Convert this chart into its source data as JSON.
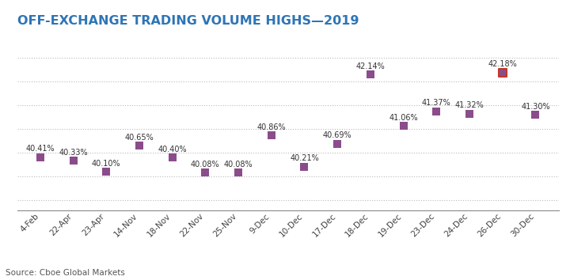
{
  "title": "OFF-EXCHANGE TRADING VOLUME HIGHS—2019",
  "categories": [
    "4-Feb",
    "22-Apr",
    "23-Apr",
    "14-Nov",
    "18-Nov",
    "22-Nov",
    "25-Nov",
    "9-Dec",
    "10-Dec",
    "17-Dec",
    "18-Dec",
    "19-Dec",
    "23-Dec",
    "24-Dec",
    "26-Dec",
    "30-Dec"
  ],
  "values": [
    40.41,
    40.33,
    40.1,
    40.65,
    40.4,
    40.08,
    40.08,
    40.86,
    40.21,
    40.69,
    42.14,
    41.06,
    41.37,
    41.32,
    42.18,
    41.3
  ],
  "labels": [
    "40.41%",
    "40.33%",
    "40.10%",
    "40.65%",
    "40.40%",
    "40.08%",
    "40.08%",
    "40.86%",
    "40.21%",
    "40.69%",
    "42.14%",
    "41.06%",
    "41.37%",
    "41.32%",
    "42.18%",
    "41.30%"
  ],
  "marker_color": "#8B4C8C",
  "highlight_index": 14,
  "highlight_border_color": "#C0392B",
  "source_text": "Source: Cboe Global Markets",
  "ylim": [
    39.3,
    43.0
  ],
  "background_color": "#ffffff",
  "grid_color": "#bbbbbb",
  "title_color": "#2E75B6",
  "label_color": "#333333",
  "title_fontsize": 11.5,
  "label_fontsize": 7.0,
  "source_fontsize": 7.5,
  "tick_fontsize": 7.5
}
